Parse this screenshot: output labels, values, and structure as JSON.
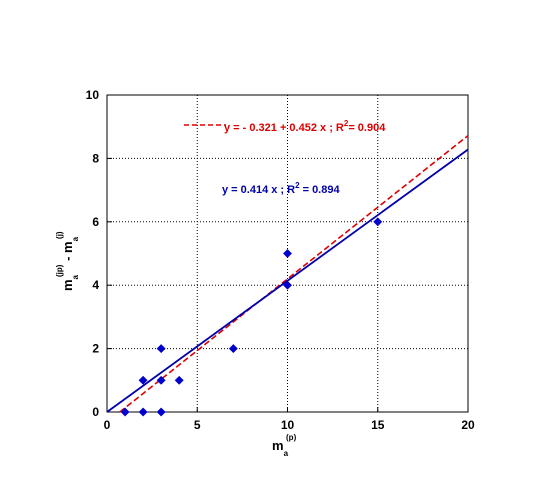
{
  "chart_data": {
    "type": "scatter",
    "xlim": [
      0,
      20
    ],
    "ylim": [
      0,
      10
    ],
    "x_ticks": [
      "0",
      "5",
      "10",
      "15",
      "20"
    ],
    "y_ticks": [
      "0",
      "2",
      "4",
      "6",
      "8",
      "10"
    ],
    "grid": true,
    "xlabel": {
      "main": "m",
      "sub": "a",
      "sup": "(p)"
    },
    "ylabel": {
      "m1": "m",
      "sub1": "a",
      "sup1": "(jp)",
      "sep": " - ",
      "m2": "m",
      "sub2": "a",
      "sup2": "(j)"
    },
    "points": [
      {
        "x": 1,
        "y": 0
      },
      {
        "x": 2,
        "y": 0
      },
      {
        "x": 3,
        "y": 0
      },
      {
        "x": 2,
        "y": 1
      },
      {
        "x": 3,
        "y": 1
      },
      {
        "x": 4,
        "y": 1
      },
      {
        "x": 3,
        "y": 2
      },
      {
        "x": 7,
        "y": 2
      },
      {
        "x": 10,
        "y": 4
      },
      {
        "x": 10,
        "y": 5
      },
      {
        "x": 15,
        "y": 6
      }
    ],
    "point_color": "#0000cc",
    "fits": [
      {
        "intercept": -0.321,
        "slope": 0.452,
        "x_from": 0.71,
        "x_to": 20,
        "style": "dashed",
        "color": "#dd0000",
        "label": "y = - 0.321 + 0.452  x   ; R",
        "label_sup": "2",
        "label_tail": "= 0.904"
      },
      {
        "intercept": 0,
        "slope": 0.414,
        "x_from": 0,
        "x_to": 20,
        "style": "solid",
        "color": "#0000aa",
        "label": "y = 0.414 x ; R",
        "label_sup": "2",
        "label_tail": " = 0.894"
      }
    ]
  }
}
